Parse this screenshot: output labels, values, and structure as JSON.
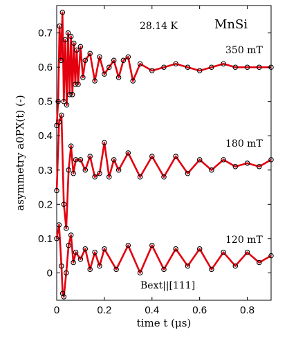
{
  "chart_data": {
    "type": "scatter",
    "title": "",
    "xlabel": "time t (μs)",
    "ylabel": "asymmetry a0PX(t) (-)",
    "xlim": [
      0,
      0.9
    ],
    "ylim": [
      -0.08,
      0.78
    ],
    "x_ticks": [
      0,
      0.2,
      0.4,
      0.6,
      0.8
    ],
    "x_tick_labels": [
      "0",
      "0.2",
      "0.4",
      "0.6",
      "0.8"
    ],
    "y_ticks": [
      0,
      0.1,
      0.2,
      0.3,
      0.4,
      0.5,
      0.6,
      0.7
    ],
    "y_tick_labels": [
      "0",
      "0.1",
      "0.2",
      "0.3",
      "0.4",
      "0.5",
      "0.6",
      "0.7"
    ],
    "grid": false,
    "legend": "none",
    "annotations": {
      "temperature": "28.14 K",
      "sample": "MnSi",
      "field_direction": "Bext||[111]"
    },
    "colors": {
      "fit": "#e3000f",
      "data": "#000000"
    },
    "series": [
      {
        "name": "350 mT",
        "baseline": 0.6,
        "x": [
          0.0,
          0.006,
          0.012,
          0.018,
          0.024,
          0.03,
          0.036,
          0.042,
          0.048,
          0.054,
          0.06,
          0.066,
          0.072,
          0.078,
          0.084,
          0.09,
          0.1,
          0.11,
          0.12,
          0.14,
          0.16,
          0.18,
          0.2,
          0.22,
          0.24,
          0.26,
          0.28,
          0.3,
          0.32,
          0.35,
          0.4,
          0.45,
          0.5,
          0.55,
          0.6,
          0.65,
          0.7,
          0.75,
          0.8,
          0.85,
          0.9
        ],
        "y": [
          0.43,
          0.5,
          0.72,
          0.62,
          0.76,
          0.5,
          0.68,
          0.49,
          0.7,
          0.52,
          0.69,
          0.52,
          0.67,
          0.55,
          0.65,
          0.55,
          0.66,
          0.57,
          0.62,
          0.64,
          0.56,
          0.63,
          0.58,
          0.6,
          0.62,
          0.57,
          0.62,
          0.63,
          0.56,
          0.61,
          0.59,
          0.6,
          0.61,
          0.6,
          0.59,
          0.6,
          0.61,
          0.6,
          0.6,
          0.6,
          0.6
        ]
      },
      {
        "name": "180 mT",
        "baseline": 0.3,
        "x": [
          0.0,
          0.01,
          0.02,
          0.03,
          0.04,
          0.05,
          0.06,
          0.07,
          0.08,
          0.1,
          0.12,
          0.14,
          0.16,
          0.18,
          0.2,
          0.22,
          0.24,
          0.26,
          0.3,
          0.35,
          0.4,
          0.45,
          0.5,
          0.55,
          0.6,
          0.65,
          0.7,
          0.75,
          0.8,
          0.85,
          0.9
        ],
        "y": [
          0.24,
          0.44,
          0.46,
          0.2,
          0.13,
          0.3,
          0.37,
          0.29,
          0.33,
          0.33,
          0.3,
          0.34,
          0.28,
          0.29,
          0.38,
          0.28,
          0.33,
          0.3,
          0.35,
          0.28,
          0.34,
          0.28,
          0.34,
          0.29,
          0.33,
          0.3,
          0.33,
          0.31,
          0.32,
          0.31,
          0.33
        ]
      },
      {
        "name": "120 mT",
        "baseline": 0.04,
        "x": [
          0.0,
          0.01,
          0.02,
          0.025,
          0.03,
          0.04,
          0.05,
          0.06,
          0.07,
          0.08,
          0.1,
          0.12,
          0.14,
          0.16,
          0.18,
          0.2,
          0.25,
          0.3,
          0.35,
          0.4,
          0.45,
          0.5,
          0.55,
          0.6,
          0.65,
          0.7,
          0.75,
          0.8,
          0.85,
          0.9
        ],
        "y": [
          0.1,
          0.14,
          0.02,
          -0.06,
          -0.07,
          0.0,
          0.08,
          0.11,
          0.03,
          0.06,
          0.04,
          0.07,
          0.01,
          0.06,
          0.02,
          0.07,
          0.01,
          0.08,
          0.0,
          0.08,
          0.01,
          0.07,
          0.02,
          0.07,
          0.01,
          0.06,
          0.02,
          0.06,
          0.03,
          0.05
        ]
      }
    ]
  }
}
